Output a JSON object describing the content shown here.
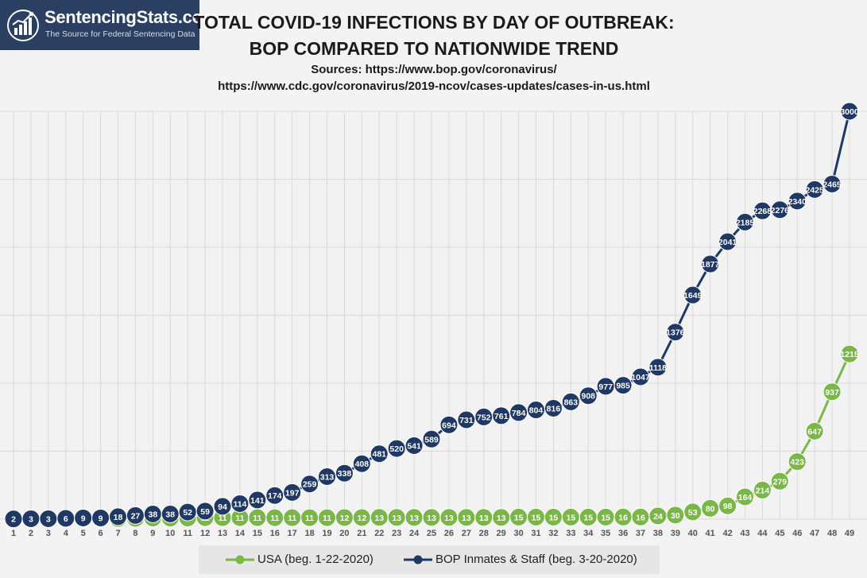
{
  "brand": {
    "name": "SentencingStats.com",
    "tagline": "The Source for Federal Sentencing Data"
  },
  "header": {
    "title_line1": "TOTAL COVID-19 INFECTIONS BY DAY OF OUTBREAK:",
    "title_line2": "BOP COMPARED TO NATIONWIDE TREND",
    "sources_line1": "Sources: https://www.bop.gov/coronavirus/",
    "sources_line2": "https://www.cdc.gov/coronavirus/2019-ncov/cases-updates/cases-in-us.html"
  },
  "colors": {
    "usa": "#7ab648",
    "bop": "#1f3864",
    "grid": "#d9d9d9",
    "background": "#f3f3f3"
  },
  "chart_data": {
    "type": "line",
    "title": "TOTAL COVID-19 INFECTIONS BY DAY OF OUTBREAK: BOP COMPARED TO NATIONWIDE TREND",
    "x": [
      1,
      2,
      3,
      4,
      5,
      6,
      7,
      8,
      9,
      10,
      11,
      12,
      13,
      14,
      15,
      16,
      17,
      18,
      19,
      20,
      21,
      22,
      23,
      24,
      25,
      26,
      27,
      28,
      29,
      30,
      31,
      32,
      33,
      34,
      35,
      36,
      37,
      38,
      39,
      40,
      41,
      42,
      43,
      44,
      45,
      46,
      47,
      48,
      49
    ],
    "ylim": [
      0,
      3000
    ],
    "y_tick_step": 500,
    "y_tick_labels_shown": false,
    "grid": true,
    "legend_position": "bottom",
    "series": [
      {
        "name": "USA (beg. 1-22-2020)",
        "color": "#7ab648",
        "values": [
          1,
          1,
          2,
          2,
          5,
          5,
          5,
          6,
          8,
          8,
          8,
          11,
          11,
          11,
          11,
          11,
          11,
          11,
          11,
          12,
          12,
          13,
          13,
          13,
          13,
          13,
          13,
          13,
          13,
          15,
          15,
          15,
          15,
          15,
          15,
          16,
          16,
          24,
          30,
          53,
          80,
          98,
          164,
          214,
          279,
          423,
          647,
          937,
          1215
        ]
      },
      {
        "name": "BOP Inmates & Staff (beg. 3-20-2020)",
        "color": "#1f3864",
        "values": [
          2,
          3,
          3,
          6,
          9,
          9,
          18,
          27,
          38,
          38,
          52,
          59,
          94,
          114,
          141,
          174,
          197,
          259,
          313,
          338,
          408,
          481,
          520,
          541,
          589,
          694,
          731,
          752,
          761,
          784,
          804,
          816,
          863,
          908,
          977,
          985,
          1047,
          1118,
          1376,
          1649,
          1877,
          2041,
          2185,
          2268,
          2276,
          2340,
          2425,
          2465,
          3000
        ]
      }
    ]
  }
}
